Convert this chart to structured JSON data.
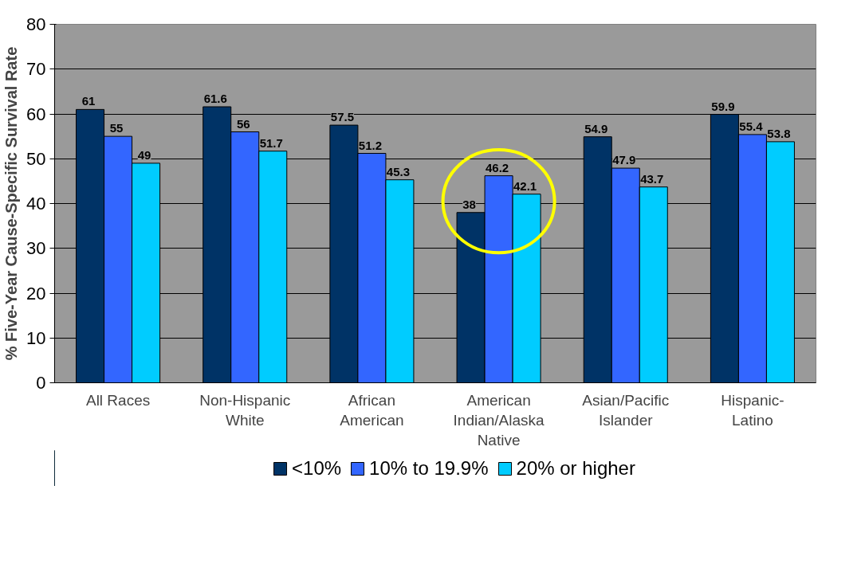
{
  "chart_data": {
    "type": "bar",
    "ylabel": "% Five-Year Cause-Specific Survival Rate",
    "categories": [
      "All Races",
      "Non-Hispanic White",
      "African American",
      "American Indian/Alaska Native",
      "Asian/Pacific Islander",
      "Hispanic-Latino"
    ],
    "series": [
      {
        "name": "<10%",
        "color": "#003366",
        "values": [
          61,
          61.6,
          57.5,
          38,
          54.9,
          59.9
        ]
      },
      {
        "name": "10% to 19.9%",
        "color": "#3366ff",
        "values": [
          55,
          56,
          51.2,
          46.2,
          47.9,
          55.4
        ]
      },
      {
        "name": "20% or higher",
        "color": "#00ccff",
        "values": [
          49,
          51.7,
          45.3,
          42.1,
          43.7,
          53.8
        ]
      }
    ],
    "ylim": [
      0,
      80
    ],
    "yticks": [
      0,
      10,
      20,
      30,
      40,
      50,
      60,
      70,
      80
    ],
    "grid": "y",
    "legend": "bottom",
    "data_labels": true
  }
}
